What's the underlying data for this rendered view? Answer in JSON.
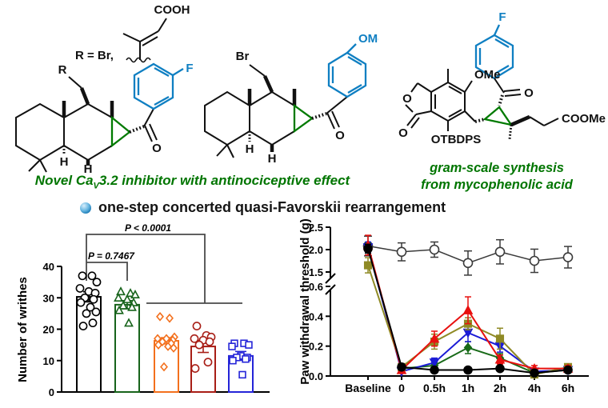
{
  "figure": {
    "bullet_text": "one-step concerted quasi-Favorskii rearrangement",
    "caption_left": {
      "pre": "Novel Ca",
      "sub": "V",
      "post": "3.2 inhibitor with antinociceptive effect"
    },
    "caption_right_line1": "gram-scale synthesis",
    "caption_right_line2": "from mycophenolic acid"
  },
  "structures": {
    "left": {
      "r_group_text": "R = Br,",
      "r_label": "R",
      "cooh": "COOH",
      "fluoro": "F",
      "ketone_o": "O",
      "h1": "H",
      "h2": "H"
    },
    "middle": {
      "bromo": "Br",
      "methoxy": "OMe",
      "ketone_o": "O",
      "h1": "H",
      "h2": "H"
    },
    "right": {
      "fluoro": "F",
      "methoxy": "OMe",
      "ester": "COOMe",
      "silyl_ether": "OTBDPS",
      "lactone_o": "O",
      "lactone_carbonyl_o": "O",
      "ketone_o": "O"
    }
  },
  "colors": {
    "structure_green": "#007a00",
    "structure_blue": "#0f7fc2",
    "caption_green": "#007500",
    "bullet_blue": "#1979b4",
    "bracket_gray": "#4a4a4a"
  },
  "chart_data": [
    {
      "type": "bar",
      "title": "",
      "xlabel": "",
      "ylabel": "Number of writhes",
      "yticks": [
        0,
        10,
        20,
        30,
        40
      ],
      "ylim": [
        0,
        40
      ],
      "grid": false,
      "legend": "none",
      "groups": [
        {
          "name": "group-1-black-circles",
          "color": "#000000",
          "marker": "circle",
          "mean": 30.3,
          "sem": 1.6,
          "points": [
            37,
            37,
            35,
            33,
            32,
            31.5,
            30,
            29.5,
            28.5,
            27,
            25.5,
            25,
            22,
            21
          ]
        },
        {
          "name": "group-2-green-triangles",
          "color": "#17631b",
          "marker": "triangle-up",
          "mean": 27.8,
          "sem": 1.3,
          "points": [
            32,
            31.5,
            31,
            30,
            29.5,
            28.5,
            27.5,
            27,
            26,
            22
          ]
        },
        {
          "name": "group-3-orange-diamonds",
          "color": "#f3701d",
          "marker": "diamond",
          "mean": 16.3,
          "sem": 1.0,
          "points": [
            24,
            23.5,
            17.5,
            17,
            17,
            16.5,
            16,
            15.5,
            15,
            14.5,
            14,
            8
          ]
        },
        {
          "name": "group-4-darkred-circles",
          "color": "#a81e16",
          "marker": "circle",
          "mean": 14.5,
          "sem": 1.9,
          "points": [
            21,
            18,
            17.5,
            17,
            16.5,
            16,
            15,
            9.5,
            7.5
          ]
        },
        {
          "name": "group-5-blue-squares",
          "color": "#2424d8",
          "marker": "square",
          "mean": 11.5,
          "sem": 1.4,
          "points": [
            15.5,
            15.5,
            15,
            14.5,
            11.5,
            11,
            11,
            10.5,
            10,
            5.5
          ]
        }
      ],
      "annotations": [
        {
          "text": "P = 0.7467",
          "compares": "group 1 vs group 2"
        },
        {
          "text": "P < 0.0001",
          "compares": "group 1 vs groups 3-5"
        }
      ]
    },
    {
      "type": "line",
      "title": "",
      "xlabel": "",
      "ylabel": "Paw withdrawal threshold (g)",
      "categories": [
        "Baseline",
        "0",
        "0.5h",
        "1h",
        "2h",
        "4h",
        "6h"
      ],
      "broken_axis": {
        "lower_range": [
          0.0,
          0.6
        ],
        "upper_range": [
          1.5,
          2.5
        ],
        "lower_ticks": [
          0.0,
          0.2,
          0.4,
          0.6
        ],
        "upper_ticks": [
          1.5,
          2.0,
          2.5
        ]
      },
      "grid": false,
      "legend": "none",
      "series": [
        {
          "name": "open-circle",
          "color": "#3a3a3a",
          "marker": "circle-open",
          "values": [
            2.08,
            1.95,
            2.0,
            1.7,
            1.95,
            1.75,
            1.83
          ],
          "errors": [
            0.22,
            0.2,
            0.17,
            0.27,
            0.27,
            0.26,
            0.24
          ]
        },
        {
          "name": "green-diamond",
          "color": "#186a18",
          "marker": "diamond",
          "values": [
            2.05,
            0.05,
            0.07,
            0.19,
            0.12,
            0.02,
            0.04
          ],
          "errors": [
            0.1,
            0.01,
            0.02,
            0.04,
            0.03,
            0.01,
            0.01
          ]
        },
        {
          "name": "blue-triangle-down",
          "color": "#1b1bd6",
          "marker": "triangle-down",
          "values": [
            2.05,
            0.03,
            0.09,
            0.29,
            0.2,
            0.03,
            0.04
          ],
          "errors": [
            0.12,
            0.01,
            0.03,
            0.06,
            0.04,
            0.01,
            0.01
          ]
        },
        {
          "name": "olive-square",
          "color": "#8f8a25",
          "marker": "square",
          "values": [
            1.65,
            0.06,
            0.23,
            0.35,
            0.25,
            0.01,
            0.06
          ],
          "errors": [
            0.17,
            0.02,
            0.05,
            0.04,
            0.07,
            0.01,
            0.02
          ]
        },
        {
          "name": "red-triangle-up",
          "color": "#e8100f",
          "marker": "triangle-up",
          "values": [
            2.1,
            0.04,
            0.25,
            0.44,
            0.11,
            0.05,
            0.05
          ],
          "errors": [
            0.22,
            0.02,
            0.05,
            0.09,
            0.03,
            0.02,
            0.02
          ]
        },
        {
          "name": "black-circle",
          "color": "#000000",
          "marker": "circle",
          "values": [
            2.02,
            0.06,
            0.04,
            0.04,
            0.05,
            0.02,
            0.04
          ],
          "errors": [
            0.1,
            0.02,
            0.01,
            0.01,
            0.01,
            0.01,
            0.01
          ]
        }
      ]
    }
  ]
}
